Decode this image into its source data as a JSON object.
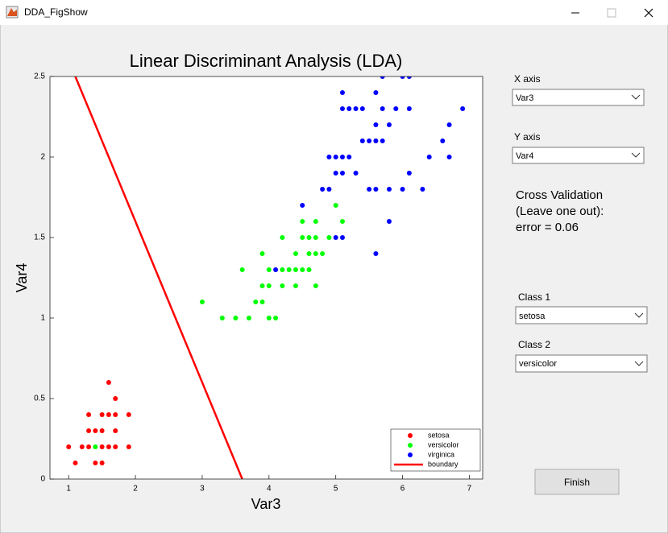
{
  "window": {
    "title": "DDA_FigShow"
  },
  "panel": {
    "x_axis_label": "X axis",
    "x_axis_value": "Var3",
    "y_axis_label": "Y axis",
    "y_axis_value": "Var4",
    "cv_lines": [
      "Cross Validation",
      "(Leave one out):",
      "error = 0.06"
    ],
    "class1_label": "Class 1",
    "class1_value": "setosa",
    "class2_label": "Class 2",
    "class2_value": "versicolor",
    "button": "Finish"
  },
  "chart_data": {
    "type": "scatter",
    "title": "Linear Discriminant Analysis (LDA)",
    "xlabel": "Var3",
    "ylabel": "Var4",
    "xlim": [
      0.72,
      7.2
    ],
    "ylim": [
      0,
      2.5
    ],
    "xticks": [
      1,
      2,
      3,
      4,
      5,
      6,
      7
    ],
    "yticks": [
      0,
      0.5,
      1,
      1.5,
      2,
      2.5
    ],
    "legend": "lower right",
    "series": [
      {
        "name": "setosa",
        "color": "#ff0000",
        "x": [
          1.0,
          1.1,
          1.2,
          1.3,
          1.3,
          1.3,
          1.4,
          1.4,
          1.5,
          1.5,
          1.5,
          1.5,
          1.6,
          1.6,
          1.6,
          1.7,
          1.7,
          1.7,
          1.7,
          1.9,
          1.9
        ],
        "y": [
          0.2,
          0.1,
          0.2,
          0.2,
          0.3,
          0.4,
          0.3,
          0.1,
          0.1,
          0.2,
          0.3,
          0.4,
          0.6,
          0.4,
          0.2,
          0.5,
          0.4,
          0.3,
          0.2,
          0.4,
          0.2
        ]
      },
      {
        "name": "versicolor",
        "color": "#00ff00",
        "x": [
          1.4,
          3.0,
          3.3,
          3.5,
          3.6,
          3.7,
          3.8,
          3.9,
          3.9,
          3.9,
          4.0,
          4.0,
          4.0,
          4.1,
          4.2,
          4.2,
          4.2,
          4.3,
          4.4,
          4.4,
          4.4,
          4.5,
          4.5,
          4.5,
          4.6,
          4.6,
          4.6,
          4.7,
          4.7,
          4.7,
          4.7,
          4.8,
          4.9,
          5.0,
          5.1
        ],
        "y": [
          0.2,
          1.1,
          1.0,
          1.0,
          1.3,
          1.0,
          1.1,
          1.1,
          1.2,
          1.4,
          1.3,
          1.2,
          1.0,
          1.0,
          1.5,
          1.3,
          1.2,
          1.3,
          1.3,
          1.4,
          1.2,
          1.3,
          1.5,
          1.6,
          1.3,
          1.4,
          1.5,
          1.4,
          1.5,
          1.6,
          1.2,
          1.4,
          1.5,
          1.7,
          1.6
        ]
      },
      {
        "name": "virginica",
        "color": "#0000ff",
        "x": [
          4.1,
          4.5,
          4.8,
          4.9,
          4.9,
          5.0,
          5.0,
          5.0,
          5.1,
          5.1,
          5.1,
          5.1,
          5.1,
          5.2,
          5.2,
          5.3,
          5.3,
          5.4,
          5.4,
          5.5,
          5.5,
          5.6,
          5.6,
          5.6,
          5.6,
          5.6,
          5.7,
          5.7,
          5.7,
          5.8,
          5.8,
          5.8,
          5.9,
          6.0,
          6.0,
          6.1,
          6.1,
          6.1,
          6.3,
          6.4,
          6.6,
          6.7,
          6.7,
          6.9
        ],
        "y": [
          1.3,
          1.7,
          1.8,
          1.8,
          2.0,
          2.0,
          1.9,
          1.5,
          1.5,
          1.9,
          2.0,
          2.3,
          2.4,
          2.0,
          2.3,
          2.3,
          1.9,
          2.3,
          2.1,
          2.1,
          1.8,
          2.4,
          2.2,
          2.1,
          1.8,
          1.4,
          2.5,
          2.3,
          2.1,
          2.2,
          1.8,
          1.6,
          2.3,
          2.5,
          1.8,
          2.5,
          2.3,
          1.9,
          1.8,
          2.0,
          2.1,
          2.2,
          2.0,
          2.3
        ]
      },
      {
        "name": "boundary",
        "color": "#ff0000",
        "type": "line",
        "x": [
          1.1,
          3.6
        ],
        "y": [
          2.5,
          0
        ]
      }
    ]
  }
}
